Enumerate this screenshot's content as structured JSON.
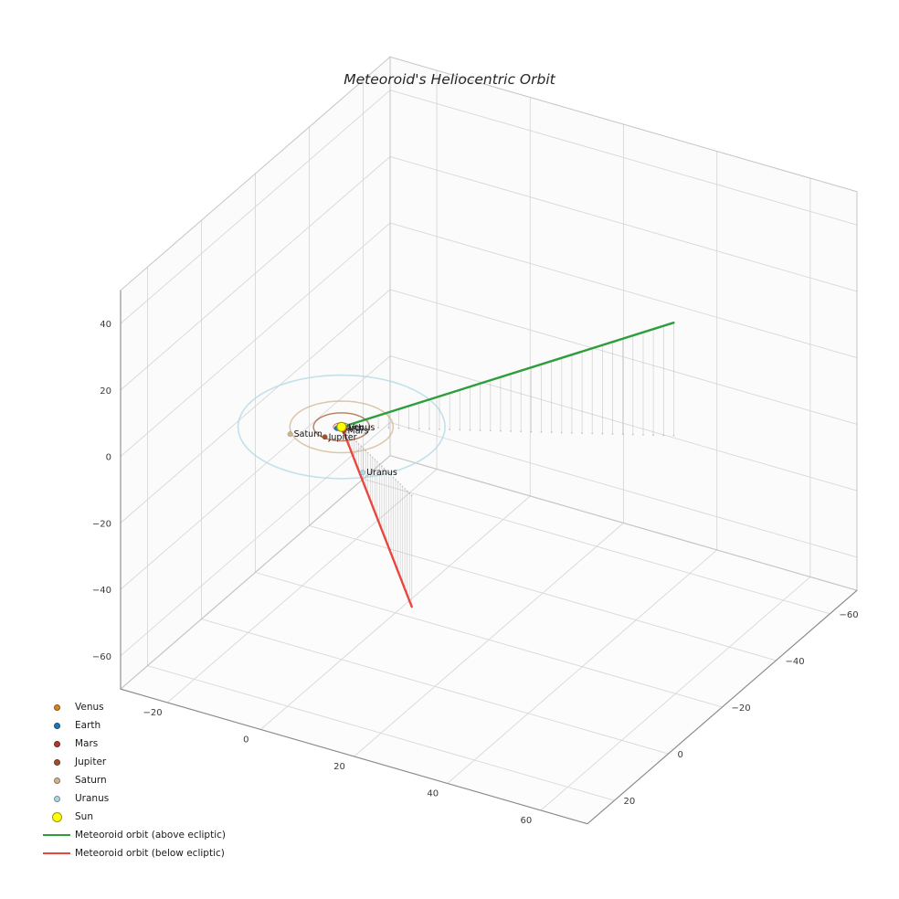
{
  "chart_data": {
    "type": "line",
    "projection": "3d",
    "title": "Meteoroid's Heliocentric Orbit",
    "axes": {
      "xlim": [
        -30,
        70
      ],
      "ylim": [
        -70,
        30
      ],
      "zlim": [
        -70,
        50
      ],
      "xticks": [
        -20,
        0,
        20,
        40,
        60
      ],
      "yticks": [
        -60,
        -40,
        -20,
        0,
        20
      ],
      "zticks": [
        -60,
        -40,
        -20,
        0,
        20,
        40
      ],
      "grid": true,
      "grid_color": "#d8d8d8",
      "edge_color": "#c4c4c4",
      "tick_color": "#3a3a3a",
      "pane_color": "#f5f5f5"
    },
    "sun": {
      "label": "Sun",
      "pos": [
        0,
        0,
        0
      ],
      "color": "#ffff00",
      "edge": "#9a9a00"
    },
    "planets": [
      {
        "name": "Venus",
        "color": "#d9831f",
        "orbit_radius": 0.72,
        "orbit_width": 1.0,
        "pos": [
          0.7,
          -0.1,
          0
        ]
      },
      {
        "name": "Earth",
        "color": "#1f77b4",
        "orbit_radius": 1.0,
        "orbit_width": 1.0,
        "pos": [
          -0.5,
          0.85,
          0
        ]
      },
      {
        "name": "Mars",
        "color": "#b03a2e",
        "orbit_radius": 1.52,
        "orbit_width": 1.0,
        "pos": [
          1.1,
          1.0,
          0
        ]
      },
      {
        "name": "Jupiter",
        "color": "#a0522d",
        "orbit_radius": 5.2,
        "orbit_width": 1.4,
        "pos": [
          -0.8,
          4.8,
          0
        ]
      },
      {
        "name": "Saturn",
        "color": "#d2b48c",
        "orbit_radius": 9.58,
        "orbit_width": 1.5,
        "pos": [
          -6.9,
          7.1,
          0
        ]
      },
      {
        "name": "Uranus",
        "color": "#add8e6",
        "orbit_radius": 19.2,
        "orbit_width": 1.6,
        "pos": [
          11.9,
          12.7,
          0
        ]
      }
    ],
    "meteoroid": {
      "above": {
        "label": "Meteoroid orbit (above ecliptic)",
        "color": "#2e9e3c",
        "start": [
          1.0,
          -0.6,
          0.5
        ],
        "end": [
          55,
          -28,
          34
        ]
      },
      "below": {
        "label": "Meteoroid orbit (below ecliptic)",
        "color": "#e8473f",
        "start": [
          0.4,
          0.3,
          -0.4
        ],
        "end": [
          24,
          15.5,
          -33.5
        ]
      },
      "stem_color": "#adadad"
    },
    "legend_position": "lower left"
  }
}
